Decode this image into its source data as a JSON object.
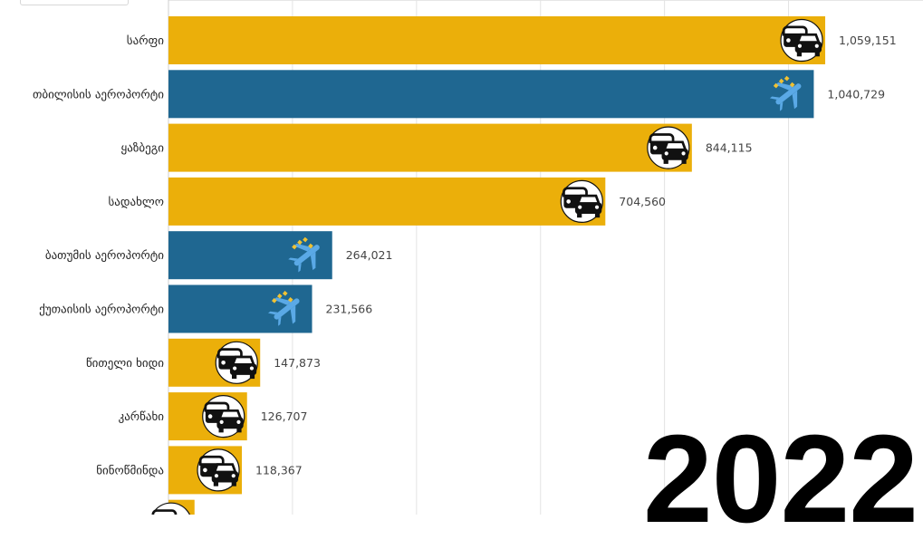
{
  "colors": {
    "road": "#ebaf0a",
    "air": "#1f6791",
    "gridline": "#e3e3e3",
    "plane_icon": "#5aa9e6",
    "plane_marks": "#f1c232"
  },
  "year": "2022",
  "chart_data": {
    "type": "bar",
    "orientation": "horizontal",
    "animated_bar_race_frame": "2022",
    "xlim": [
      0,
      1100000
    ],
    "grid": true,
    "categories": [
      "სარფი",
      "თბილისის აეროპორტი",
      "ყაზბეგი",
      "სადახლო",
      "ბათუმის აეროპორტი",
      "ქუთაისის აეროპორტი",
      "წითელი ხიდი",
      "კარწახი",
      "ნინოწმინდა",
      ""
    ],
    "values": [
      1059151,
      1040729,
      844115,
      704560,
      264021,
      231566,
      147873,
      126707,
      118367,
      42000
    ],
    "value_labels": [
      "1,059,151",
      "1,040,729",
      "844,115",
      "704,560",
      "264,021",
      "231,566",
      "147,873",
      "126,707",
      "118,367",
      ""
    ],
    "kinds": [
      "road",
      "air",
      "road",
      "road",
      "air",
      "air",
      "road",
      "road",
      "road",
      "road"
    ],
    "icons": [
      "car-icon",
      "airplane-icon",
      "car-icon",
      "car-icon",
      "airplane-icon",
      "airplane-icon",
      "car-icon",
      "car-icon",
      "car-icon",
      "car-icon"
    ]
  }
}
